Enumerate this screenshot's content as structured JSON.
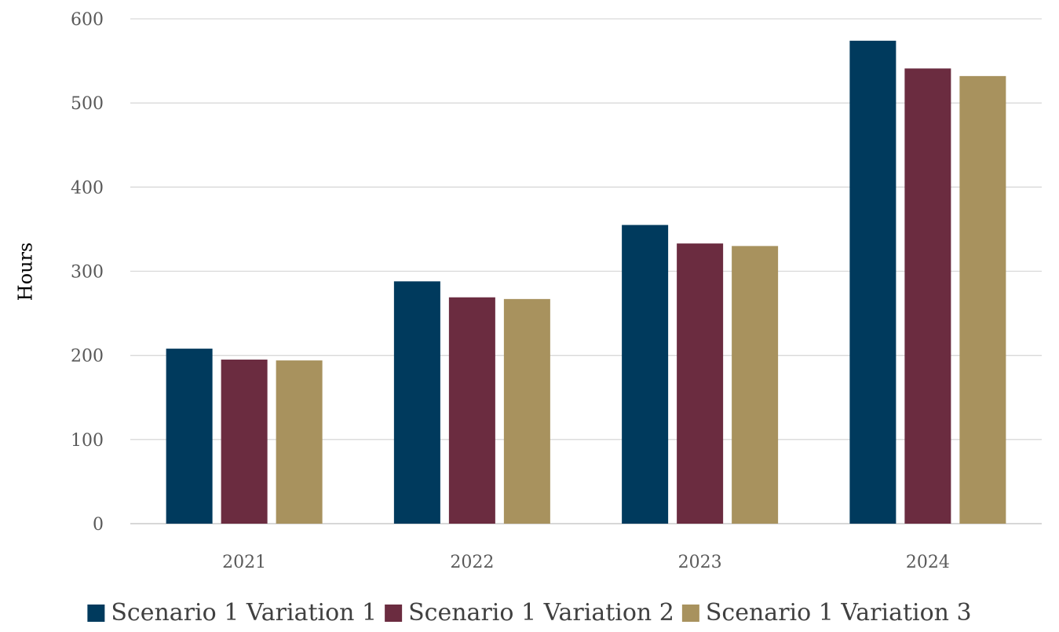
{
  "chart_data": {
    "type": "bar",
    "title": "",
    "xlabel": "",
    "ylabel": "Hours",
    "ylim": [
      0,
      600
    ],
    "y_ticks": [
      "0",
      "100",
      "200",
      "300",
      "400",
      "500",
      "600"
    ],
    "categories": [
      "2021",
      "2022",
      "2023",
      "2024"
    ],
    "series": [
      {
        "name": "Scenario 1 Variation 1",
        "color": "#003a5d",
        "values": [
          208,
          288,
          355,
          574
        ]
      },
      {
        "name": "Scenario 1 Variation 2",
        "color": "#6b2c40",
        "values": [
          195,
          269,
          333,
          541
        ]
      },
      {
        "name": "Scenario 1 Variation 3",
        "color": "#a8925e",
        "values": [
          194,
          267,
          330,
          532
        ]
      }
    ],
    "grid": true,
    "legend_position": "bottom"
  }
}
